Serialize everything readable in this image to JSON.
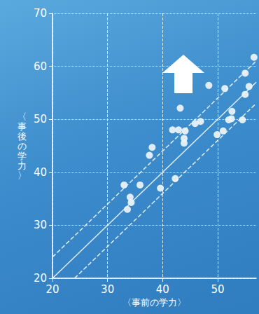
{
  "chart_data": {
    "type": "scatter",
    "x_label": "〈事前の学力〉",
    "y_label": "〈事後の学力〉",
    "xlim": [
      20,
      57
    ],
    "xticks": [
      20,
      30,
      40,
      50
    ],
    "ylim": [
      20,
      70
    ],
    "yticks": [
      20,
      30,
      40,
      50,
      60,
      70
    ],
    "grid": true,
    "series": [
      {
        "type": "scatter",
        "marker": "circle",
        "color": "#eef5fb",
        "x": [
          33.0,
          34.1,
          34.3,
          33.6,
          35.9,
          37.6,
          38.1,
          39.6,
          42.3,
          41.8,
          42.9,
          43.2,
          43.9,
          44.1,
          43.9,
          45.9,
          46.9,
          48.4,
          49.9,
          51.0,
          51.3,
          52.0,
          52.6,
          52.5,
          54.5,
          55.0,
          55.0,
          56.6,
          55.7
        ],
        "values": [
          37.6,
          35.3,
          34.3,
          33.0,
          37.6,
          43.2,
          44.7,
          37.0,
          38.8,
          48.0,
          48.0,
          52.1,
          46.4,
          47.8,
          45.5,
          49.2,
          49.6,
          56.4,
          47.1,
          47.8,
          55.8,
          49.9,
          51.5,
          50.1,
          49.9,
          58.7,
          54.7,
          61.7,
          56.2
        ]
      },
      {
        "type": "line",
        "line_style": "solid",
        "color": "#ffffff",
        "x": [
          20,
          57
        ],
        "values": [
          20,
          57
        ]
      },
      {
        "type": "line",
        "line_style": "dashed",
        "color": "#ffffff",
        "x": [
          20,
          57
        ],
        "values": [
          24,
          61
        ]
      },
      {
        "type": "line",
        "line_style": "dashed",
        "color": "#ffffff",
        "x": [
          24,
          57
        ],
        "values": [
          20,
          53
        ]
      }
    ]
  }
}
